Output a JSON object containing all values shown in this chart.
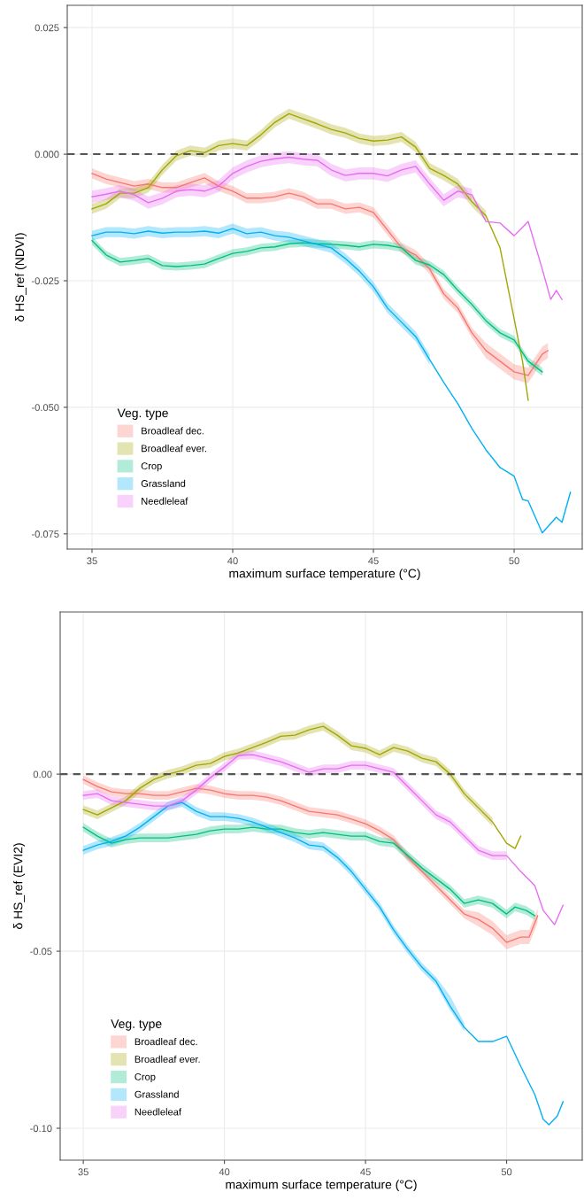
{
  "chart_data": [
    {
      "type": "line",
      "ylabel": "δ HS_ref (NDVI)",
      "xlabel": "maximum surface temperature (°C)",
      "legend_title": "Veg. type",
      "legend": "bottom left",
      "grid": true,
      "xlim": [
        34.12,
        52.42
      ],
      "xticks": [
        35,
        40,
        45,
        50
      ],
      "ylim": [
        -0.078,
        0.0294
      ],
      "yticks": [
        {
          "value": 0.025,
          "label": "0.025"
        },
        {
          "value": 0,
          "label": "0.000"
        },
        {
          "value": -0.025,
          "label": "-0.025"
        },
        {
          "value": -0.05,
          "label": "-0.050"
        },
        {
          "value": -0.075,
          "label": "-0.075"
        }
      ],
      "ref_lines": [
        {
          "axis": "y",
          "value": 0,
          "line_style": "dashed",
          "color": "#555555"
        }
      ],
      "series": [
        {
          "name": "Broadleaf dec.",
          "color": "#F8766D",
          "x": [
            35,
            35.5,
            36,
            36.5,
            37,
            37.5,
            38,
            38.5,
            39,
            39.5,
            40,
            40.5,
            41,
            41.5,
            42,
            42.5,
            43,
            43.5,
            44,
            44.5,
            45,
            45.5,
            46,
            46.5,
            47,
            47.5,
            48,
            48.5,
            49,
            49.5,
            50,
            50.5,
            51,
            51.2
          ],
          "values": [
            -0.0038,
            -0.0049,
            -0.0056,
            -0.0063,
            -0.0059,
            -0.0066,
            -0.0066,
            -0.0056,
            -0.0047,
            -0.0063,
            -0.0073,
            -0.0087,
            -0.0087,
            -0.0084,
            -0.0077,
            -0.0084,
            -0.0098,
            -0.0098,
            -0.0108,
            -0.0105,
            -0.0115,
            -0.015,
            -0.0185,
            -0.0199,
            -0.0227,
            -0.0276,
            -0.0304,
            -0.0353,
            -0.0388,
            -0.0409,
            -0.043,
            -0.0437,
            -0.0395,
            -0.0388
          ],
          "lower": [
            -0.0048,
            -0.0059,
            -0.0066,
            -0.0073,
            -0.0069,
            -0.0076,
            -0.0076,
            -0.0066,
            -0.0057,
            -0.0073,
            -0.0083,
            -0.0097,
            -0.0097,
            -0.0094,
            -0.0087,
            -0.0094,
            -0.0108,
            -0.0108,
            -0.0118,
            -0.0115,
            -0.0125,
            -0.016,
            -0.0195,
            -0.0209,
            -0.0237,
            -0.0286,
            -0.0314,
            -0.0363,
            -0.0403,
            -0.0424,
            -0.0445,
            -0.0452,
            -0.041,
            -0.0403
          ],
          "upper": [
            -0.0028,
            -0.0039,
            -0.0046,
            -0.0053,
            -0.0049,
            -0.0056,
            -0.0056,
            -0.0046,
            -0.0037,
            -0.0053,
            -0.0063,
            -0.0077,
            -0.0077,
            -0.0074,
            -0.0067,
            -0.0074,
            -0.0088,
            -0.0088,
            -0.0098,
            -0.0095,
            -0.0105,
            -0.014,
            -0.0175,
            -0.0189,
            -0.0217,
            -0.0266,
            -0.0294,
            -0.0343,
            -0.0373,
            -0.0394,
            -0.0415,
            -0.0422,
            -0.038,
            -0.0373
          ]
        },
        {
          "name": "Broadleaf ever.",
          "color": "#A3A500",
          "x": [
            35,
            35.5,
            36,
            36.5,
            37,
            37.5,
            38,
            38.5,
            39,
            39.5,
            40,
            40.5,
            41,
            41.5,
            42,
            42.5,
            43,
            43.5,
            44,
            44.5,
            45,
            45.5,
            46,
            46.5,
            47,
            47.5,
            48,
            48.5,
            49,
            49.5,
            50,
            50.3,
            50.5
          ],
          "values": [
            -0.0108,
            -0.0098,
            -0.0077,
            -0.0077,
            -0.0066,
            -0.0031,
            -0.0003,
            0.0007,
            0.0003,
            0.0017,
            0.0021,
            0.0017,
            0.0038,
            0.0063,
            0.008,
            0.007,
            0.006,
            0.0049,
            0.0042,
            0.0031,
            0.0026,
            0.0028,
            0.0034,
            0.0014,
            -0.0028,
            -0.0042,
            -0.0059,
            -0.0094,
            -0.0122,
            -0.0185,
            -0.0325,
            -0.041,
            -0.0486
          ],
          "lower": [
            -0.0118,
            -0.0108,
            -0.0087,
            -0.0087,
            -0.0076,
            -0.0041,
            -0.0013,
            -0.0003,
            -0.0007,
            0.0007,
            0.0011,
            0.0007,
            0.0028,
            0.0053,
            0.007,
            0.006,
            0.005,
            0.0039,
            0.0032,
            0.0021,
            0.0016,
            0.0018,
            0.0024,
            0.0004,
            -0.0038,
            -0.0052,
            -0.0069,
            -0.0104,
            -0.0132,
            null,
            null,
            null,
            null
          ],
          "upper": [
            -0.0098,
            -0.0088,
            -0.0067,
            -0.0067,
            -0.0056,
            -0.0021,
            0.0007,
            0.0017,
            0.0013,
            0.0027,
            0.0031,
            0.0027,
            0.0048,
            0.0073,
            0.009,
            0.008,
            0.007,
            0.0059,
            0.0052,
            0.0041,
            0.0036,
            0.0038,
            0.0044,
            0.0024,
            -0.0018,
            -0.0032,
            -0.0049,
            -0.0084,
            -0.0112,
            null,
            null,
            null,
            null
          ]
        },
        {
          "name": "Crop",
          "color": "#00BF7D",
          "x": [
            35,
            35.5,
            36,
            36.5,
            37,
            37.5,
            38,
            38.5,
            39,
            39.5,
            40,
            40.5,
            41,
            41.5,
            42,
            42.5,
            43,
            43.5,
            44,
            44.5,
            45,
            45.5,
            46,
            46.5,
            47,
            47.5,
            48,
            48.5,
            49,
            49.5,
            50,
            50.5,
            51
          ],
          "values": [
            -0.0171,
            -0.0199,
            -0.0213,
            -0.021,
            -0.0206,
            -0.022,
            -0.0222,
            -0.022,
            -0.0217,
            -0.0206,
            -0.0196,
            -0.0192,
            -0.0185,
            -0.0183,
            -0.0177,
            -0.0175,
            -0.0177,
            -0.0178,
            -0.018,
            -0.0183,
            -0.0178,
            -0.018,
            -0.0185,
            -0.021,
            -0.0219,
            -0.0238,
            -0.0269,
            -0.0297,
            -0.0329,
            -0.0353,
            -0.0367,
            -0.0409,
            -0.043
          ],
          "lower": [
            -0.0179,
            -0.0207,
            -0.0221,
            -0.0218,
            -0.0214,
            -0.0228,
            -0.023,
            -0.0228,
            -0.0225,
            -0.0214,
            -0.0204,
            -0.02,
            -0.0193,
            -0.0191,
            -0.0185,
            -0.0183,
            -0.0185,
            -0.0186,
            -0.0188,
            -0.0191,
            -0.0186,
            -0.0188,
            -0.0193,
            -0.0218,
            -0.0227,
            -0.0246,
            -0.0277,
            -0.0305,
            -0.0337,
            -0.0361,
            -0.0375,
            -0.0417,
            -0.0438
          ],
          "upper": [
            -0.0163,
            -0.0191,
            -0.0205,
            -0.0202,
            -0.0198,
            -0.0212,
            -0.0214,
            -0.0212,
            -0.0209,
            -0.0198,
            -0.0188,
            -0.0184,
            -0.0177,
            -0.0175,
            -0.0169,
            -0.0167,
            -0.0169,
            -0.017,
            -0.0172,
            -0.0175,
            -0.017,
            -0.0172,
            -0.0177,
            -0.0202,
            -0.0211,
            -0.023,
            -0.0261,
            -0.0289,
            -0.0321,
            -0.0345,
            -0.0359,
            -0.0401,
            -0.0422
          ]
        },
        {
          "name": "Grassland",
          "color": "#00B0F6",
          "x": [
            35,
            35.5,
            36,
            36.5,
            37,
            37.5,
            38,
            38.5,
            39,
            39.5,
            40,
            40.5,
            41,
            41.5,
            42,
            42.5,
            43,
            43.5,
            44,
            44.5,
            45,
            45.5,
            46,
            46.5,
            47,
            47.5,
            48,
            48.5,
            49,
            49.5,
            50,
            50.3,
            50.5,
            51,
            51.5,
            51.7,
            52
          ],
          "values": [
            -0.0161,
            -0.0154,
            -0.0154,
            -0.0157,
            -0.0152,
            -0.0156,
            -0.0154,
            -0.0154,
            -0.0152,
            -0.0156,
            -0.0147,
            -0.0157,
            -0.0154,
            -0.0161,
            -0.0164,
            -0.0171,
            -0.0178,
            -0.0185,
            -0.0206,
            -0.0231,
            -0.0262,
            -0.0304,
            -0.0332,
            -0.036,
            -0.0406,
            -0.0451,
            -0.0493,
            -0.0542,
            -0.0584,
            -0.0619,
            -0.0636,
            -0.0682,
            -0.0685,
            -0.0748,
            -0.0717,
            -0.0727,
            -0.0668
          ],
          "lower": [
            -0.0171,
            -0.0164,
            -0.0164,
            -0.0167,
            -0.0162,
            -0.0166,
            -0.0164,
            -0.0164,
            -0.0162,
            -0.0166,
            -0.0157,
            -0.0167,
            -0.0164,
            -0.0171,
            -0.0174,
            -0.0181,
            -0.0188,
            -0.0195,
            -0.0216,
            -0.0241,
            -0.0272,
            -0.0314,
            -0.0342,
            -0.037,
            -0.0416,
            null,
            null,
            null,
            null,
            null,
            null,
            null,
            null,
            null,
            null,
            null,
            null
          ],
          "upper": [
            -0.0151,
            -0.0144,
            -0.0144,
            -0.0147,
            -0.0142,
            -0.0146,
            -0.0144,
            -0.0144,
            -0.0142,
            -0.0146,
            -0.0137,
            -0.0147,
            -0.0144,
            -0.0151,
            -0.0154,
            -0.0161,
            -0.0168,
            -0.0175,
            -0.0196,
            -0.0221,
            -0.0252,
            -0.0294,
            -0.0322,
            -0.035,
            -0.0396,
            null,
            null,
            null,
            null,
            null,
            null,
            null,
            null,
            null,
            null,
            null,
            null
          ]
        },
        {
          "name": "Needleleaf",
          "color": "#E76BF3",
          "x": [
            35,
            35.5,
            36,
            36.5,
            37,
            37.5,
            38,
            38.5,
            39,
            39.5,
            40,
            40.5,
            41,
            41.5,
            42,
            42.5,
            43,
            43.5,
            44,
            44.5,
            45,
            45.5,
            46,
            46.5,
            47,
            47.5,
            48,
            48.5,
            49,
            49.5,
            50,
            50.5,
            51,
            51.3,
            51.5,
            51.7
          ],
          "values": [
            -0.0084,
            -0.0079,
            -0.0073,
            -0.008,
            -0.0096,
            -0.0087,
            -0.0073,
            -0.007,
            -0.0073,
            -0.0063,
            -0.0038,
            -0.0024,
            -0.0014,
            -0.0009,
            -0.0006,
            -0.001,
            -0.0012,
            -0.0031,
            -0.0042,
            -0.0038,
            -0.0038,
            -0.0043,
            -0.0031,
            -0.0024,
            -0.0059,
            -0.0091,
            -0.0073,
            -0.008,
            -0.0133,
            -0.0136,
            -0.0161,
            -0.0133,
            -0.0227,
            -0.0287,
            -0.0269,
            -0.0287
          ],
          "lower": [
            -0.0096,
            -0.0091,
            -0.0085,
            -0.0092,
            -0.0108,
            -0.0099,
            -0.0085,
            -0.0082,
            -0.0085,
            -0.0075,
            -0.005,
            -0.0036,
            -0.0026,
            -0.0021,
            -0.0018,
            -0.0022,
            -0.0024,
            -0.0043,
            -0.0054,
            -0.005,
            -0.005,
            -0.0055,
            -0.0043,
            -0.0036,
            -0.0071,
            -0.0103,
            -0.0085,
            -0.0092,
            null,
            null,
            null,
            null,
            null,
            null,
            null,
            null
          ],
          "upper": [
            -0.0072,
            -0.0067,
            -0.0061,
            -0.0068,
            -0.0084,
            -0.0075,
            -0.0061,
            -0.0058,
            -0.0061,
            -0.0051,
            -0.0026,
            -0.0012,
            -0.0002,
            0.0003,
            0.0006,
            0.0002,
            0.0,
            -0.0019,
            -0.003,
            -0.0026,
            -0.0026,
            -0.0031,
            -0.0019,
            -0.0012,
            -0.0047,
            -0.0079,
            -0.0061,
            -0.0068,
            null,
            null,
            null,
            null,
            null,
            null,
            null,
            null
          ]
        }
      ]
    },
    {
      "type": "line",
      "ylabel": "δ HS_ref (EVI2)",
      "xlabel": "maximum surface temperature (°C)",
      "legend_title": "Veg. type",
      "legend": "bottom left",
      "grid": true,
      "xlim": [
        34.18,
        52.68
      ],
      "xticks": [
        35,
        40,
        45,
        50
      ],
      "ylim": [
        -0.109,
        0.0458
      ],
      "yticks": [
        {
          "value": 0,
          "label": "0.00"
        },
        {
          "value": -0.05,
          "label": "-0.05"
        },
        {
          "value": -0.1,
          "label": "-0.10"
        }
      ],
      "ref_lines": [
        {
          "axis": "y",
          "value": 0,
          "line_style": "dashed",
          "color": "#555555"
        }
      ],
      "series": [
        {
          "name": "Broadleaf dec.",
          "color": "#F8766D",
          "x": [
            35,
            35.5,
            36,
            36.5,
            37,
            37.5,
            38,
            38.5,
            39,
            39.5,
            40,
            40.5,
            41,
            41.5,
            42,
            42.5,
            43,
            43.5,
            44,
            44.5,
            45,
            45.5,
            46,
            46.5,
            47,
            47.5,
            48,
            48.5,
            49,
            49.5,
            50,
            50.5,
            50.8,
            51.1
          ],
          "values": [
            -0.0015,
            -0.0035,
            -0.005,
            -0.0055,
            -0.0055,
            -0.006,
            -0.006,
            -0.005,
            -0.004,
            -0.0045,
            -0.0055,
            -0.006,
            -0.006,
            -0.0065,
            -0.0075,
            -0.009,
            -0.0105,
            -0.011,
            -0.0115,
            -0.0127,
            -0.014,
            -0.016,
            -0.0185,
            -0.0235,
            -0.0275,
            -0.0315,
            -0.0355,
            -0.0395,
            -0.041,
            -0.0435,
            -0.0475,
            -0.046,
            -0.046,
            -0.04
          ],
          "lower": [
            -0.0027,
            -0.0047,
            -0.0062,
            -0.0067,
            -0.0067,
            -0.0072,
            -0.0072,
            -0.0062,
            -0.0052,
            -0.0057,
            -0.0067,
            -0.0072,
            -0.0072,
            -0.0077,
            -0.0087,
            -0.0102,
            -0.0117,
            -0.0122,
            -0.0127,
            -0.0139,
            -0.0152,
            -0.0172,
            -0.0197,
            -0.0247,
            -0.0287,
            -0.0327,
            -0.0367,
            -0.0407,
            -0.043,
            -0.0455,
            -0.0495,
            -0.048,
            -0.048,
            -0.042
          ],
          "upper": [
            -0.0003,
            -0.0023,
            -0.0038,
            -0.0043,
            -0.0043,
            -0.0048,
            -0.0048,
            -0.0038,
            -0.0028,
            -0.0033,
            -0.0043,
            -0.0048,
            -0.0048,
            -0.0053,
            -0.0063,
            -0.0078,
            -0.0093,
            -0.0098,
            -0.0103,
            -0.0115,
            -0.0128,
            -0.0148,
            -0.0173,
            -0.0223,
            -0.0263,
            -0.0303,
            -0.0343,
            -0.0383,
            -0.039,
            -0.0415,
            -0.0455,
            -0.044,
            -0.044,
            -0.038
          ]
        },
        {
          "name": "Broadleaf ever.",
          "color": "#A3A500",
          "x": [
            35,
            35.5,
            36,
            36.5,
            37,
            37.5,
            38,
            38.5,
            39,
            39.5,
            40,
            40.5,
            41,
            41.5,
            42,
            42.5,
            43,
            43.5,
            44,
            44.5,
            45,
            45.5,
            46,
            46.5,
            47,
            47.5,
            48,
            48.5,
            49,
            49.5,
            50,
            50.3,
            50.5
          ],
          "values": [
            -0.01,
            -0.0115,
            -0.0095,
            -0.0075,
            -0.004,
            -0.0015,
            0.0,
            0.001,
            0.0025,
            0.003,
            0.005,
            0.006,
            0.0075,
            0.009,
            0.0107,
            0.011,
            0.0125,
            0.0135,
            0.011,
            0.008,
            0.0073,
            0.0055,
            0.0075,
            0.0065,
            0.0045,
            0.0035,
            0.0,
            -0.0055,
            -0.0095,
            -0.0135,
            -0.0195,
            -0.021,
            -0.0175
          ],
          "lower": [
            -0.0112,
            -0.0127,
            -0.0107,
            -0.0087,
            -0.0052,
            -0.0027,
            -0.0012,
            -0.0002,
            0.0013,
            0.0018,
            0.0038,
            0.0048,
            0.0063,
            0.0078,
            0.0095,
            0.0098,
            0.0113,
            0.0123,
            0.0098,
            0.0068,
            0.0061,
            0.0043,
            0.0063,
            0.0053,
            0.0033,
            0.0023,
            -0.0012,
            -0.0067,
            -0.0107,
            -0.0147,
            null,
            null,
            null
          ],
          "upper": [
            -0.0088,
            -0.0103,
            -0.0083,
            -0.0063,
            -0.0028,
            -0.0003,
            0.0012,
            0.0022,
            0.0037,
            0.0042,
            0.0062,
            0.0072,
            0.0087,
            0.0102,
            0.0119,
            0.0122,
            0.0137,
            0.0147,
            0.0122,
            0.0092,
            0.0085,
            0.0067,
            0.0087,
            0.0077,
            0.0057,
            0.0047,
            0.0012,
            -0.0043,
            -0.0083,
            -0.0123,
            null,
            null,
            null
          ]
        },
        {
          "name": "Crop",
          "color": "#00BF7D",
          "x": [
            35,
            35.5,
            36,
            36.5,
            37,
            37.5,
            38,
            38.5,
            39,
            39.5,
            40,
            40.5,
            41,
            41.5,
            42,
            42.5,
            43,
            43.5,
            44,
            44.5,
            45,
            45.5,
            46,
            46.5,
            47,
            47.5,
            48,
            48.5,
            49,
            49.5,
            50,
            50.3,
            50.7,
            51
          ],
          "values": [
            -0.015,
            -0.0175,
            -0.0195,
            -0.0185,
            -0.018,
            -0.018,
            -0.018,
            -0.0175,
            -0.017,
            -0.016,
            -0.0155,
            -0.0155,
            -0.015,
            -0.0155,
            -0.0155,
            -0.0165,
            -0.017,
            -0.0165,
            -0.017,
            -0.0175,
            -0.0175,
            -0.019,
            -0.0195,
            -0.023,
            -0.0265,
            -0.0295,
            -0.0325,
            -0.0365,
            -0.0355,
            -0.0365,
            -0.0395,
            -0.0375,
            -0.0385,
            -0.04
          ],
          "lower": [
            -0.0162,
            -0.0187,
            -0.0207,
            -0.0197,
            -0.0192,
            -0.0192,
            -0.0192,
            -0.0187,
            -0.0182,
            -0.0172,
            -0.0167,
            -0.0167,
            -0.0162,
            -0.0167,
            -0.0167,
            -0.0177,
            -0.0182,
            -0.0177,
            -0.0182,
            -0.0187,
            -0.0187,
            -0.0202,
            -0.0207,
            -0.0242,
            -0.0277,
            -0.0307,
            -0.0337,
            -0.0377,
            -0.0367,
            -0.0377,
            -0.0407,
            -0.0387,
            -0.0397,
            -0.0412
          ],
          "upper": [
            -0.0138,
            -0.0163,
            -0.0183,
            -0.0173,
            -0.0168,
            -0.0168,
            -0.0168,
            -0.0163,
            -0.0158,
            -0.0148,
            -0.0143,
            -0.0143,
            -0.0138,
            -0.0143,
            -0.0143,
            -0.0153,
            -0.0158,
            -0.0153,
            -0.0158,
            -0.0163,
            -0.0163,
            -0.0178,
            -0.0183,
            -0.0218,
            -0.0253,
            -0.0283,
            -0.0313,
            -0.0353,
            -0.0343,
            -0.0353,
            -0.0383,
            -0.0363,
            -0.0373,
            -0.0388
          ]
        },
        {
          "name": "Grassland",
          "color": "#00B0F6",
          "x": [
            35,
            35.5,
            36,
            36.5,
            37,
            37.5,
            38,
            38.5,
            39,
            39.5,
            40,
            40.5,
            41,
            41.5,
            42,
            42.5,
            43,
            43.5,
            44,
            44.5,
            45,
            45.5,
            46,
            46.5,
            47,
            47.5,
            48,
            48.5,
            49,
            49.5,
            50,
            50.5,
            51,
            51.3,
            51.5,
            51.8,
            52
          ],
          "values": [
            -0.0215,
            -0.02,
            -0.019,
            -0.0175,
            -0.015,
            -0.012,
            -0.009,
            -0.008,
            -0.0105,
            -0.012,
            -0.012,
            -0.0125,
            -0.0135,
            -0.015,
            -0.0165,
            -0.018,
            -0.02,
            -0.0205,
            -0.0235,
            -0.0275,
            -0.0325,
            -0.0375,
            -0.044,
            -0.0495,
            -0.0545,
            -0.0585,
            -0.0655,
            -0.0715,
            -0.0755,
            -0.0755,
            -0.074,
            -0.0825,
            -0.0905,
            -0.0975,
            -0.099,
            -0.0965,
            -0.0925
          ],
          "lower": [
            -0.0227,
            -0.0212,
            -0.0202,
            -0.0187,
            -0.0162,
            -0.0132,
            -0.0102,
            -0.0092,
            -0.0117,
            -0.0132,
            -0.0132,
            -0.0137,
            -0.0147,
            -0.0162,
            -0.0177,
            -0.0192,
            -0.0212,
            -0.0217,
            -0.0247,
            -0.0287,
            -0.0337,
            -0.0387,
            -0.0452,
            -0.0507,
            -0.0557,
            -0.0597,
            -0.0667,
            -0.0727,
            null,
            null,
            null,
            null,
            null,
            null,
            null,
            null,
            null
          ],
          "upper": [
            -0.0203,
            -0.0188,
            -0.0178,
            -0.0163,
            -0.0138,
            -0.0108,
            -0.0078,
            -0.0068,
            -0.0093,
            -0.0108,
            -0.0108,
            -0.0113,
            -0.0123,
            -0.0138,
            -0.0153,
            -0.0168,
            -0.0188,
            -0.0193,
            -0.0223,
            -0.0263,
            -0.0313,
            -0.0363,
            -0.0428,
            -0.0483,
            -0.0533,
            -0.0573,
            -0.0627,
            -0.0703,
            null,
            null,
            null,
            null,
            null,
            null,
            null,
            null,
            null
          ]
        },
        {
          "name": "Needleleaf",
          "color": "#E76BF3",
          "x": [
            35,
            35.5,
            36,
            36.5,
            37,
            37.5,
            38,
            38.5,
            39,
            39.5,
            40,
            40.5,
            41,
            41.5,
            42,
            42.5,
            43,
            43.5,
            44,
            44.5,
            45,
            45.5,
            46,
            46.5,
            47,
            47.5,
            48,
            48.5,
            49,
            49.5,
            50,
            50.5,
            51,
            51.3,
            51.7,
            52
          ],
          "values": [
            -0.006,
            -0.0055,
            -0.0075,
            -0.008,
            -0.0085,
            -0.009,
            -0.009,
            -0.0075,
            -0.0045,
            -0.001,
            0.002,
            0.0053,
            0.0055,
            0.0045,
            0.0035,
            0.002,
            0.0005,
            0.0015,
            0.0015,
            0.0025,
            0.0025,
            0.0015,
            0.0005,
            -0.0035,
            -0.0075,
            -0.0115,
            -0.0135,
            -0.0175,
            -0.0215,
            -0.023,
            -0.023,
            -0.0275,
            -0.0315,
            -0.0385,
            -0.0425,
            -0.037
          ],
          "lower": [
            -0.0072,
            -0.0067,
            -0.0087,
            -0.0092,
            -0.0097,
            -0.0102,
            -0.0102,
            -0.0087,
            -0.0057,
            -0.0022,
            0.0008,
            0.0041,
            0.0043,
            0.0033,
            0.0023,
            0.0008,
            -0.0007,
            0.0003,
            0.0003,
            0.0013,
            0.0013,
            0.0003,
            -0.0007,
            -0.0047,
            -0.0087,
            -0.0127,
            -0.0147,
            -0.0187,
            -0.0227,
            -0.0242,
            -0.0242,
            null,
            null,
            null,
            null,
            null
          ],
          "upper": [
            -0.0048,
            -0.0043,
            -0.0063,
            -0.0068,
            -0.0073,
            -0.0078,
            -0.0078,
            -0.0063,
            -0.0033,
            0.0002,
            0.0032,
            0.0065,
            0.0067,
            0.0057,
            0.0047,
            0.0032,
            0.0017,
            0.0027,
            0.0027,
            0.0037,
            0.0037,
            0.0027,
            0.0017,
            -0.0023,
            -0.0063,
            -0.0103,
            -0.0123,
            -0.0163,
            -0.0203,
            -0.0218,
            -0.0218,
            null,
            null,
            null,
            null,
            null
          ]
        }
      ]
    }
  ]
}
